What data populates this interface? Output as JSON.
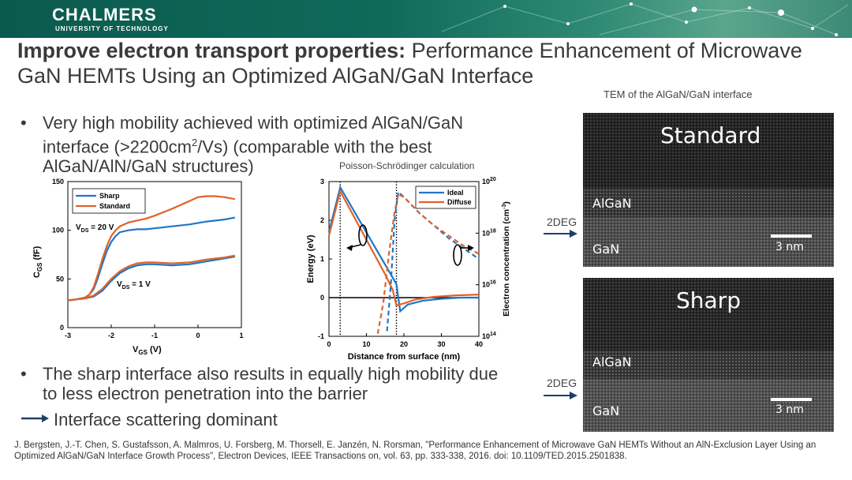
{
  "header": {
    "logo_name": "CHALMERS",
    "logo_sub": "UNIVERSITY OF TECHNOLOGY"
  },
  "title": {
    "bold": "Improve electron transport properties:",
    "rest": " Performance Enhancement of Microwave GaN HEMTs Using an Optimized AlGaN/GaN Interface"
  },
  "bullets": [
    {
      "text_a": "Very high mobility achieved with optimized AlGaN/GaN interface (>2200cm",
      "sup": "2",
      "text_b": "/Vs) (comparable with the best AlGaN/AlN/GaN structures)"
    },
    {
      "text": "The sharp interface also results in equally high mobility due to less electron penetration into the barrier"
    }
  ],
  "conclusion": "Interface scattering dominant",
  "tem": {
    "caption": "TEM of the AlGaN/GaN interface",
    "deg_label": "2DEG",
    "panels": [
      {
        "title": "Standard",
        "upper": "AlGaN",
        "lower": "GaN",
        "scale": "3 nm"
      },
      {
        "title": "Sharp",
        "upper": "AlGaN",
        "lower": "GaN",
        "scale": "3 nm"
      }
    ]
  },
  "poisson_caption": "Poisson-Schrödinger calculation",
  "footer": "J. Bergsten, J.-T. Chen, S. Gustafsson, A. Malmros, U. Forsberg, M. Thorsell, E. Janzén, N. Rorsman, \"Performance Enhancement of Microwave GaN HEMTs Without an AlN-Exclusion Layer Using an Optimized AlGaN/GaN Interface Growth Process\", Electron Devices, IEEE Transactions on, vol. 63, pp. 333-338, 2016. doi: 10.1109/TED.2015.2501838.",
  "chart_data": [
    {
      "type": "line",
      "title": "",
      "xlabel": "V",
      "xlabel_sub": "GS",
      "xlabel_unit": " (V)",
      "ylabel": "C",
      "ylabel_sub": "GS",
      "ylabel_unit": " (fF)",
      "xlim": [
        -3,
        1
      ],
      "ylim": [
        0,
        150
      ],
      "xticks": [
        "-3",
        "-2",
        "-1",
        "0",
        "1"
      ],
      "yticks": [
        "0",
        "50",
        "100",
        "150"
      ],
      "legend": [
        "Sharp",
        "Standard"
      ],
      "legend_position": "top-left",
      "annotations": [
        {
          "text": "V",
          "sub": "DS",
          "rest": " = 20 V",
          "x": -2.75,
          "y": 100
        },
        {
          "text": "V",
          "sub": "DS",
          "rest": " = 1 V",
          "x": -1.9,
          "y": 46
        }
      ],
      "series": [
        {
          "name": "Sharp",
          "color": "#1f77c4",
          "condition": "VDS=20V",
          "x": [
            -3,
            -2.8,
            -2.6,
            -2.5,
            -2.4,
            -2.3,
            -2.2,
            -2.1,
            -2.0,
            -1.9,
            -1.8,
            -1.6,
            -1.4,
            -1.2,
            -1.0,
            -0.6,
            -0.2,
            0.2,
            0.6,
            0.85
          ],
          "y": [
            28,
            29,
            31,
            34,
            40,
            52,
            66,
            79,
            88,
            94,
            98,
            100,
            101,
            101,
            102,
            104,
            106,
            109,
            111,
            113
          ]
        },
        {
          "name": "Standard",
          "color": "#e0622a",
          "condition": "VDS=20V",
          "x": [
            -3,
            -2.8,
            -2.6,
            -2.5,
            -2.4,
            -2.3,
            -2.2,
            -2.1,
            -2.0,
            -1.9,
            -1.8,
            -1.6,
            -1.4,
            -1.2,
            -1.0,
            -0.6,
            -0.2,
            0.0,
            0.2,
            0.4,
            0.6,
            0.85
          ],
          "y": [
            28,
            29,
            31,
            34,
            42,
            56,
            71,
            84,
            94,
            100,
            104,
            108,
            110,
            112,
            115,
            122,
            130,
            134,
            135,
            135,
            134,
            132
          ]
        },
        {
          "name": "Sharp",
          "color": "#1f77c4",
          "condition": "VDS=1V",
          "x": [
            -3,
            -2.8,
            -2.6,
            -2.4,
            -2.2,
            -2.0,
            -1.8,
            -1.6,
            -1.4,
            -1.2,
            -1.0,
            -0.6,
            -0.2,
            0.2,
            0.6,
            0.85
          ],
          "y": [
            28,
            29,
            30,
            32,
            38,
            48,
            56,
            61,
            64,
            65,
            65,
            64,
            65,
            68,
            71,
            73
          ]
        },
        {
          "name": "Standard",
          "color": "#e0622a",
          "condition": "VDS=1V",
          "x": [
            -3,
            -2.8,
            -2.6,
            -2.4,
            -2.2,
            -2.0,
            -1.8,
            -1.6,
            -1.4,
            -1.2,
            -1.0,
            -0.6,
            -0.2,
            0.2,
            0.6,
            0.85
          ],
          "y": [
            28,
            29,
            30,
            33,
            40,
            50,
            58,
            63,
            66,
            67,
            67,
            66,
            67,
            70,
            72,
            74
          ]
        }
      ]
    },
    {
      "type": "line",
      "title": "Poisson-Schrödinger calculation",
      "xlabel": "Distance from surface (nm)",
      "ylabel": "Energy (eV)",
      "ylabel_right": "Electron concentration (cm",
      "ylabel_right_sup": "-3",
      "ylabel_right_end": ")",
      "xlim": [
        0,
        40
      ],
      "ylim": [
        -1,
        3
      ],
      "y2_decades": [
        14,
        20
      ],
      "xticks": [
        "0",
        "10",
        "20",
        "30",
        "40"
      ],
      "yticks": [
        "-1",
        "0",
        "1",
        "2",
        "3"
      ],
      "y2ticks": [
        {
          "base": "10",
          "exp": "14"
        },
        {
          "base": "10",
          "exp": "16"
        },
        {
          "base": "10",
          "exp": "18"
        },
        {
          "base": "10",
          "exp": "20"
        }
      ],
      "legend": [
        "Ideal",
        "Diffuse"
      ],
      "legend_position": "top-right",
      "vlines": [
        3,
        18
      ],
      "series": [
        {
          "name": "Ideal",
          "color": "#1f77c4",
          "style": "solid",
          "axis": "left",
          "x": [
            0,
            3,
            18,
            19,
            21,
            25,
            30,
            35,
            40
          ],
          "y": [
            1.7,
            2.85,
            0.35,
            -0.35,
            -0.18,
            -0.08,
            -0.03,
            0.0,
            0.0
          ]
        },
        {
          "name": "Diffuse",
          "color": "#e0622a",
          "style": "solid",
          "axis": "left",
          "x": [
            0,
            3,
            15,
            17,
            18,
            20,
            23,
            28,
            34,
            40
          ],
          "y": [
            1.6,
            2.75,
            0.6,
            0.2,
            -0.2,
            -0.15,
            -0.05,
            0.02,
            0.06,
            0.08
          ]
        },
        {
          "name": "Ideal",
          "color": "#1f77c4",
          "style": "dashed",
          "axis": "right",
          "x": [
            15.5,
            16.5,
            17.5,
            18.5,
            20,
            24,
            28,
            32,
            36,
            40
          ],
          "y": [
            14.2,
            16,
            18.5,
            19.6,
            19.4,
            18.8,
            18.3,
            17.8,
            17.4,
            17.0
          ]
        },
        {
          "name": "Diffuse",
          "color": "#e0622a",
          "style": "dashed",
          "axis": "right",
          "x": [
            13,
            14.5,
            16,
            17.5,
            18.5,
            20,
            24,
            28,
            32,
            36,
            40
          ],
          "y": [
            14.1,
            15.3,
            17.2,
            18.8,
            19.5,
            19.4,
            18.8,
            18.3,
            17.9,
            17.5,
            17.2
          ]
        }
      ]
    }
  ]
}
